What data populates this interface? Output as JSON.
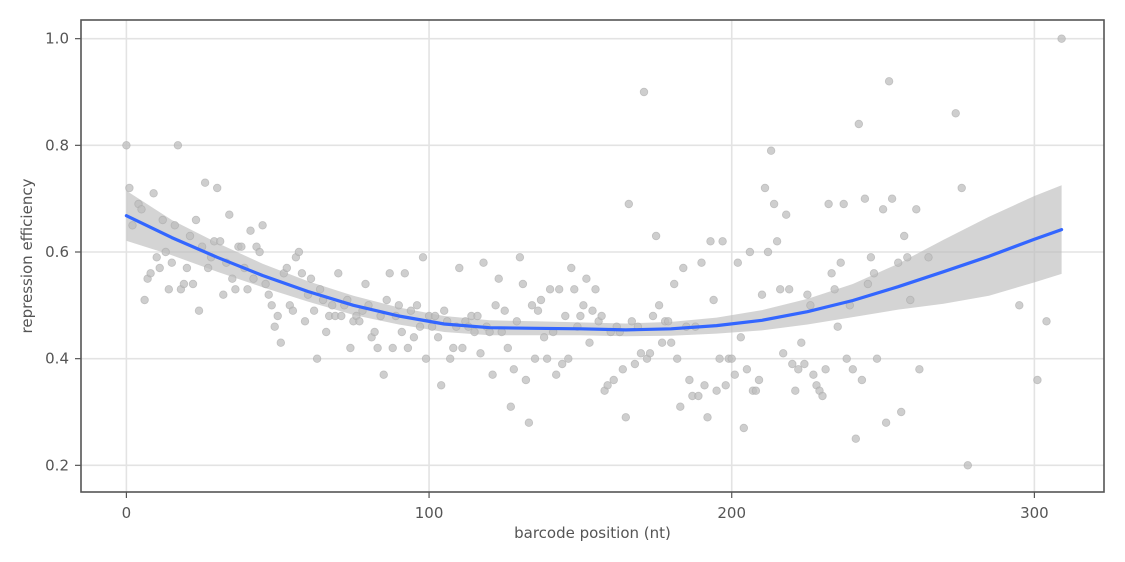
{
  "chart_data": {
    "type": "scatter",
    "title": "",
    "xlabel": "barcode position (nt)",
    "ylabel": "repression efficiency",
    "xlim": [
      -15,
      323
    ],
    "ylim": [
      0.15,
      1.035
    ],
    "x_ticks": [
      0,
      100,
      200,
      300
    ],
    "y_ticks": [
      0.2,
      0.4,
      0.6,
      0.8,
      1.0
    ],
    "x_tick_labels": [
      "0",
      "100",
      "200",
      "300"
    ],
    "y_tick_labels": [
      "0.2",
      "0.4",
      "0.6",
      "0.8",
      "1.0"
    ],
    "grid": true,
    "legend": "none",
    "colors": {
      "points": "#bdbdbd",
      "smooth": "#3366ff",
      "ribbon": "#bdbdbd"
    },
    "points": [
      [
        0,
        0.8
      ],
      [
        1,
        0.72
      ],
      [
        2,
        0.65
      ],
      [
        4,
        0.69
      ],
      [
        5,
        0.68
      ],
      [
        6,
        0.51
      ],
      [
        7,
        0.55
      ],
      [
        8,
        0.56
      ],
      [
        9,
        0.71
      ],
      [
        10,
        0.59
      ],
      [
        11,
        0.57
      ],
      [
        12,
        0.66
      ],
      [
        13,
        0.6
      ],
      [
        14,
        0.53
      ],
      [
        15,
        0.58
      ],
      [
        16,
        0.65
      ],
      [
        17,
        0.8
      ],
      [
        18,
        0.53
      ],
      [
        19,
        0.54
      ],
      [
        20,
        0.57
      ],
      [
        21,
        0.63
      ],
      [
        22,
        0.54
      ],
      [
        23,
        0.66
      ],
      [
        24,
        0.49
      ],
      [
        25,
        0.61
      ],
      [
        26,
        0.73
      ],
      [
        27,
        0.57
      ],
      [
        28,
        0.59
      ],
      [
        29,
        0.62
      ],
      [
        30,
        0.72
      ],
      [
        31,
        0.62
      ],
      [
        32,
        0.52
      ],
      [
        33,
        0.58
      ],
      [
        34,
        0.67
      ],
      [
        35,
        0.55
      ],
      [
        36,
        0.53
      ],
      [
        37,
        0.61
      ],
      [
        38,
        0.61
      ],
      [
        39,
        0.57
      ],
      [
        40,
        0.53
      ],
      [
        41,
        0.64
      ],
      [
        42,
        0.55
      ],
      [
        43,
        0.61
      ],
      [
        44,
        0.6
      ],
      [
        45,
        0.65
      ],
      [
        46,
        0.54
      ],
      [
        47,
        0.52
      ],
      [
        48,
        0.5
      ],
      [
        49,
        0.46
      ],
      [
        50,
        0.48
      ],
      [
        51,
        0.43
      ],
      [
        52,
        0.56
      ],
      [
        53,
        0.57
      ],
      [
        54,
        0.5
      ],
      [
        55,
        0.49
      ],
      [
        56,
        0.59
      ],
      [
        57,
        0.6
      ],
      [
        58,
        0.56
      ],
      [
        59,
        0.47
      ],
      [
        60,
        0.52
      ],
      [
        61,
        0.55
      ],
      [
        62,
        0.49
      ],
      [
        63,
        0.4
      ],
      [
        64,
        0.53
      ],
      [
        65,
        0.51
      ],
      [
        66,
        0.45
      ],
      [
        67,
        0.48
      ],
      [
        68,
        0.5
      ],
      [
        69,
        0.48
      ],
      [
        70,
        0.56
      ],
      [
        71,
        0.48
      ],
      [
        72,
        0.5
      ],
      [
        73,
        0.51
      ],
      [
        74,
        0.42
      ],
      [
        75,
        0.47
      ],
      [
        76,
        0.48
      ],
      [
        77,
        0.47
      ],
      [
        78,
        0.49
      ],
      [
        79,
        0.54
      ],
      [
        80,
        0.5
      ],
      [
        81,
        0.44
      ],
      [
        82,
        0.45
      ],
      [
        83,
        0.42
      ],
      [
        84,
        0.48
      ],
      [
        85,
        0.37
      ],
      [
        86,
        0.51
      ],
      [
        87,
        0.56
      ],
      [
        88,
        0.42
      ],
      [
        89,
        0.48
      ],
      [
        90,
        0.5
      ],
      [
        91,
        0.45
      ],
      [
        92,
        0.56
      ],
      [
        93,
        0.42
      ],
      [
        94,
        0.49
      ],
      [
        95,
        0.44
      ],
      [
        96,
        0.5
      ],
      [
        97,
        0.46
      ],
      [
        98,
        0.59
      ],
      [
        99,
        0.4
      ],
      [
        100,
        0.48
      ],
      [
        101,
        0.46
      ],
      [
        102,
        0.48
      ],
      [
        103,
        0.44
      ],
      [
        104,
        0.35
      ],
      [
        105,
        0.49
      ],
      [
        106,
        0.47
      ],
      [
        107,
        0.4
      ],
      [
        108,
        0.42
      ],
      [
        109,
        0.46
      ],
      [
        110,
        0.57
      ],
      [
        111,
        0.42
      ],
      [
        112,
        0.47
      ],
      [
        113,
        0.46
      ],
      [
        114,
        0.48
      ],
      [
        115,
        0.45
      ],
      [
        116,
        0.48
      ],
      [
        117,
        0.41
      ],
      [
        118,
        0.58
      ],
      [
        119,
        0.46
      ],
      [
        120,
        0.45
      ],
      [
        121,
        0.37
      ],
      [
        122,
        0.5
      ],
      [
        123,
        0.55
      ],
      [
        124,
        0.45
      ],
      [
        125,
        0.49
      ],
      [
        126,
        0.42
      ],
      [
        127,
        0.31
      ],
      [
        128,
        0.38
      ],
      [
        129,
        0.47
      ],
      [
        130,
        0.59
      ],
      [
        131,
        0.54
      ],
      [
        132,
        0.36
      ],
      [
        133,
        0.28
      ],
      [
        134,
        0.5
      ],
      [
        135,
        0.4
      ],
      [
        136,
        0.49
      ],
      [
        137,
        0.51
      ],
      [
        138,
        0.44
      ],
      [
        139,
        0.4
      ],
      [
        140,
        0.53
      ],
      [
        141,
        0.45
      ],
      [
        142,
        0.37
      ],
      [
        143,
        0.53
      ],
      [
        144,
        0.39
      ],
      [
        145,
        0.48
      ],
      [
        146,
        0.4
      ],
      [
        147,
        0.57
      ],
      [
        148,
        0.53
      ],
      [
        149,
        0.46
      ],
      [
        150,
        0.48
      ],
      [
        151,
        0.5
      ],
      [
        152,
        0.55
      ],
      [
        153,
        0.43
      ],
      [
        154,
        0.49
      ],
      [
        155,
        0.53
      ],
      [
        156,
        0.47
      ],
      [
        157,
        0.48
      ],
      [
        158,
        0.34
      ],
      [
        159,
        0.35
      ],
      [
        160,
        0.45
      ],
      [
        161,
        0.36
      ],
      [
        162,
        0.46
      ],
      [
        163,
        0.45
      ],
      [
        164,
        0.38
      ],
      [
        165,
        0.29
      ],
      [
        166,
        0.69
      ],
      [
        167,
        0.47
      ],
      [
        168,
        0.39
      ],
      [
        169,
        0.46
      ],
      [
        170,
        0.41
      ],
      [
        171,
        0.9
      ],
      [
        172,
        0.4
      ],
      [
        173,
        0.41
      ],
      [
        174,
        0.48
      ],
      [
        175,
        0.63
      ],
      [
        176,
        0.5
      ],
      [
        177,
        0.43
      ],
      [
        178,
        0.47
      ],
      [
        179,
        0.47
      ],
      [
        180,
        0.43
      ],
      [
        181,
        0.54
      ],
      [
        182,
        0.4
      ],
      [
        183,
        0.31
      ],
      [
        184,
        0.57
      ],
      [
        185,
        0.46
      ],
      [
        186,
        0.36
      ],
      [
        187,
        0.33
      ],
      [
        188,
        0.46
      ],
      [
        189,
        0.33
      ],
      [
        190,
        0.58
      ],
      [
        191,
        0.35
      ],
      [
        192,
        0.29
      ],
      [
        193,
        0.62
      ],
      [
        194,
        0.51
      ],
      [
        195,
        0.34
      ],
      [
        196,
        0.4
      ],
      [
        197,
        0.62
      ],
      [
        198,
        0.35
      ],
      [
        199,
        0.4
      ],
      [
        200,
        0.4
      ],
      [
        201,
        0.37
      ],
      [
        202,
        0.58
      ],
      [
        203,
        0.44
      ],
      [
        204,
        0.27
      ],
      [
        205,
        0.38
      ],
      [
        206,
        0.6
      ],
      [
        207,
        0.34
      ],
      [
        208,
        0.34
      ],
      [
        209,
        0.36
      ],
      [
        210,
        0.52
      ],
      [
        211,
        0.72
      ],
      [
        212,
        0.6
      ],
      [
        213,
        0.79
      ],
      [
        214,
        0.69
      ],
      [
        215,
        0.62
      ],
      [
        216,
        0.53
      ],
      [
        217,
        0.41
      ],
      [
        218,
        0.67
      ],
      [
        219,
        0.53
      ],
      [
        220,
        0.39
      ],
      [
        221,
        0.34
      ],
      [
        222,
        0.38
      ],
      [
        223,
        0.43
      ],
      [
        224,
        0.39
      ],
      [
        225,
        0.52
      ],
      [
        226,
        0.5
      ],
      [
        227,
        0.37
      ],
      [
        228,
        0.35
      ],
      [
        229,
        0.34
      ],
      [
        230,
        0.33
      ],
      [
        231,
        0.38
      ],
      [
        232,
        0.69
      ],
      [
        233,
        0.56
      ],
      [
        234,
        0.53
      ],
      [
        235,
        0.46
      ],
      [
        236,
        0.58
      ],
      [
        237,
        0.69
      ],
      [
        238,
        0.4
      ],
      [
        239,
        0.5
      ],
      [
        240,
        0.38
      ],
      [
        241,
        0.25
      ],
      [
        242,
        0.84
      ],
      [
        243,
        0.36
      ],
      [
        244,
        0.7
      ],
      [
        245,
        0.54
      ],
      [
        246,
        0.59
      ],
      [
        247,
        0.56
      ],
      [
        248,
        0.4
      ],
      [
        250,
        0.68
      ],
      [
        251,
        0.28
      ],
      [
        252,
        0.92
      ],
      [
        253,
        0.7
      ],
      [
        255,
        0.58
      ],
      [
        256,
        0.3
      ],
      [
        257,
        0.63
      ],
      [
        258,
        0.59
      ],
      [
        259,
        0.51
      ],
      [
        261,
        0.68
      ],
      [
        262,
        0.38
      ],
      [
        265,
        0.59
      ],
      [
        274,
        0.86
      ],
      [
        276,
        0.72
      ],
      [
        278,
        0.2
      ],
      [
        295,
        0.5
      ],
      [
        301,
        0.36
      ],
      [
        304,
        0.47
      ],
      [
        309,
        1.0
      ]
    ],
    "smooth": {
      "method": "loess",
      "x": [
        0,
        15,
        30,
        45,
        60,
        75,
        90,
        105,
        120,
        135,
        150,
        165,
        180,
        195,
        210,
        225,
        240,
        255,
        270,
        285,
        300,
        309
      ],
      "y": [
        0.668,
        0.627,
        0.59,
        0.556,
        0.526,
        0.5,
        0.48,
        0.465,
        0.458,
        0.457,
        0.456,
        0.454,
        0.456,
        0.462,
        0.472,
        0.488,
        0.509,
        0.535,
        0.563,
        0.592,
        0.624,
        0.642
      ],
      "ci_upper": [
        0.715,
        0.66,
        0.617,
        0.578,
        0.545,
        0.518,
        0.496,
        0.48,
        0.472,
        0.47,
        0.468,
        0.466,
        0.469,
        0.477,
        0.491,
        0.512,
        0.54,
        0.578,
        0.623,
        0.666,
        0.705,
        0.725
      ],
      "ci_lower": [
        0.621,
        0.594,
        0.563,
        0.534,
        0.507,
        0.482,
        0.464,
        0.45,
        0.444,
        0.444,
        0.444,
        0.442,
        0.443,
        0.447,
        0.453,
        0.464,
        0.478,
        0.492,
        0.503,
        0.518,
        0.543,
        0.559
      ]
    }
  }
}
